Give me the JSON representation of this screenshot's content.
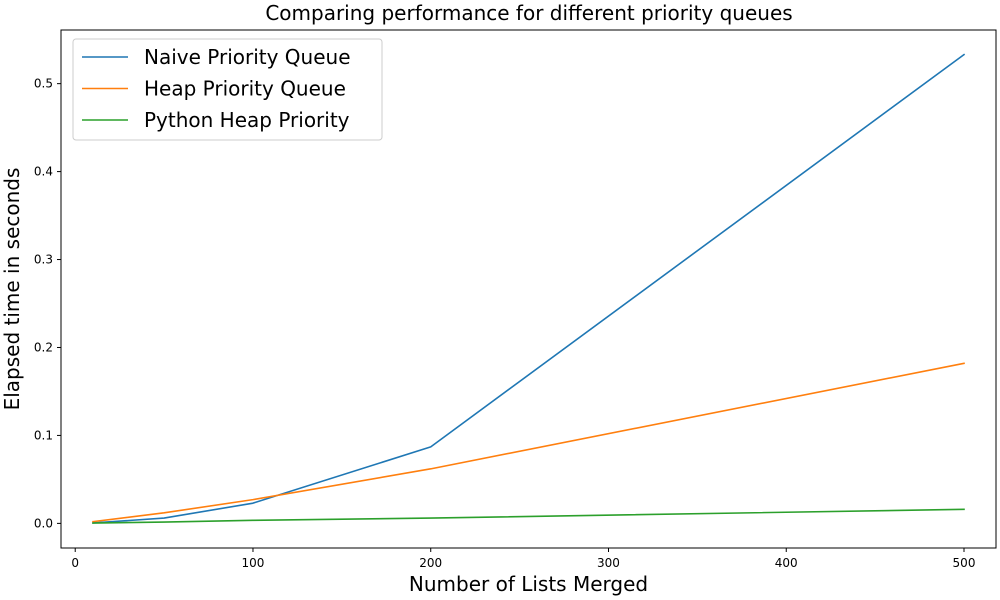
{
  "chart_data": {
    "type": "line",
    "title": "Comparing performance for different priority queues",
    "xlabel": "Number of Lists Merged",
    "ylabel": "Elapsed time in seconds",
    "xlim": [
      -8,
      518
    ],
    "ylim": [
      -0.028,
      0.561
    ],
    "xticks": [
      0,
      100,
      200,
      300,
      400,
      500
    ],
    "yticks": [
      0.0,
      0.1,
      0.2,
      0.3,
      0.4,
      0.5
    ],
    "xtick_labels": [
      "0",
      "100",
      "200",
      "300",
      "400",
      "500"
    ],
    "ytick_labels": [
      "0.0",
      "0.1",
      "0.2",
      "0.3",
      "0.4",
      "0.5"
    ],
    "grid": false,
    "legend_position": "top-left",
    "x": [
      10,
      50,
      100,
      200,
      500
    ],
    "series": [
      {
        "name": "Naive Priority Queue",
        "color": "#1f77b4",
        "values": [
          0.0005,
          0.006,
          0.023,
          0.087,
          0.533
        ]
      },
      {
        "name": "Heap Priority Queue",
        "color": "#ff7f0e",
        "values": [
          0.002,
          0.012,
          0.027,
          0.062,
          0.182
        ]
      },
      {
        "name": "Python Heap Priority",
        "color": "#2ca02c",
        "values": [
          0.0003,
          0.0015,
          0.0035,
          0.006,
          0.016
        ]
      }
    ]
  }
}
